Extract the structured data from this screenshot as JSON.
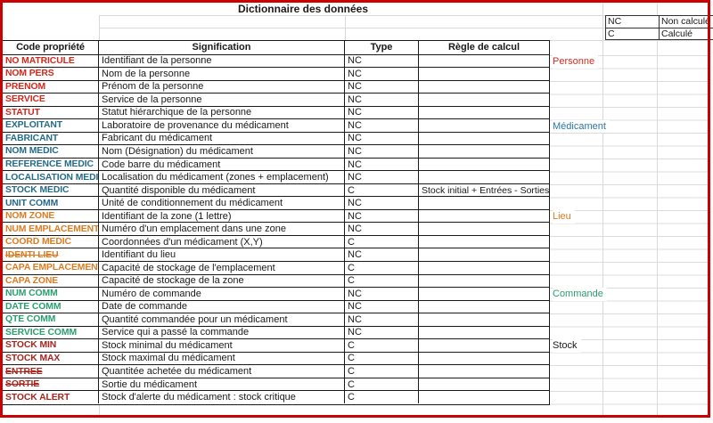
{
  "title": "Dictionnaire des données",
  "legend": {
    "items": [
      {
        "code": "NC",
        "label": "Non calculé"
      },
      {
        "code": "C",
        "label": "Calculé"
      }
    ]
  },
  "table": {
    "headers": [
      "Code propriété",
      "Signification",
      "Type",
      "Règle de calcul"
    ],
    "rows": [
      {
        "code": "NO MATRICULE",
        "signification": "Identifiant de la personne",
        "type": "NC",
        "regle": "",
        "group": "personne",
        "strike": false
      },
      {
        "code": "NOM PERS",
        "signification": "Nom de la personne",
        "type": "NC",
        "regle": "",
        "group": "personne",
        "strike": false
      },
      {
        "code": "PRENOM",
        "signification": "Prénom de la personne",
        "type": "NC",
        "regle": "",
        "group": "personne",
        "strike": false
      },
      {
        "code": "SERVICE",
        "signification": "Service de la personne",
        "type": "NC",
        "regle": "",
        "group": "personne",
        "strike": false
      },
      {
        "code": "STATUT",
        "signification": "Statut hiérarchique de la personne",
        "type": "NC",
        "regle": "",
        "group": "personne",
        "strike": false
      },
      {
        "code": "EXPLOITANT",
        "signification": "Laboratoire de provenance du médicament",
        "type": "NC",
        "regle": "",
        "group": "medicament",
        "strike": false
      },
      {
        "code": "FABRICANT",
        "signification": "Fabricant du médicament",
        "type": "NC",
        "regle": "",
        "group": "medicament",
        "strike": false
      },
      {
        "code": "NOM MEDIC",
        "signification": "Nom (Désignation) du médicament",
        "type": "NC",
        "regle": "",
        "group": "medicament",
        "strike": false
      },
      {
        "code": "REFERENCE MEDIC",
        "signification": "Code barre du médicament",
        "type": "NC",
        "regle": "",
        "group": "medicament",
        "strike": false
      },
      {
        "code": "LOCALISATION MEDIC",
        "signification": "Localisation du médicament (zones + emplacement)",
        "type": "NC",
        "regle": "",
        "group": "medicament",
        "strike": false
      },
      {
        "code": "STOCK MEDIC",
        "signification": "Quantité disponible du médicament",
        "type": "C",
        "regle": "Stock initial + Entrées - Sorties",
        "group": "medicament",
        "strike": false
      },
      {
        "code": "UNIT COMM",
        "signification": "Unité de conditionnement du médicament",
        "type": "NC",
        "regle": "",
        "group": "medicament",
        "strike": false
      },
      {
        "code": "NOM ZONE",
        "signification": "Identifiant de la zone (1 lettre)",
        "type": "NC",
        "regle": "",
        "group": "lieu",
        "strike": false
      },
      {
        "code": "NUM EMPLACEMENT",
        "signification": "Numéro d'un emplacement dans une zone",
        "type": "NC",
        "regle": "",
        "group": "lieu",
        "strike": false
      },
      {
        "code": "COORD MEDIC",
        "signification": "Coordonnées d'un médicament (X,Y)",
        "type": "C",
        "regle": "",
        "group": "lieu",
        "strike": false
      },
      {
        "code": "IDENTI LIEU",
        "signification": "Identifiant du lieu",
        "type": "NC",
        "regle": "",
        "group": "lieu",
        "strike": true
      },
      {
        "code": "CAPA EMPLACEMENT",
        "signification": "Capacité de stockage de l'emplacement",
        "type": "C",
        "regle": "",
        "group": "lieu",
        "strike": false
      },
      {
        "code": "CAPA ZONE",
        "signification": "Capacité de stockage de la zone",
        "type": "C",
        "regle": "",
        "group": "lieu",
        "strike": false
      },
      {
        "code": "NUM COMM",
        "signification": "Numéro de commande",
        "type": "NC",
        "regle": "",
        "group": "commande",
        "strike": false
      },
      {
        "code": "DATE COMM",
        "signification": "Date de commande",
        "type": "NC",
        "regle": "",
        "group": "commande",
        "strike": false
      },
      {
        "code": "QTE COMM",
        "signification": "Quantité commandée pour un médicament",
        "type": "NC",
        "regle": "",
        "group": "commande",
        "strike": false
      },
      {
        "code": "SERVICE COMM",
        "signification": "Service qui a passé la commande",
        "type": "NC",
        "regle": "",
        "group": "commande",
        "strike": false
      },
      {
        "code": "STOCK MIN",
        "signification": "Stock minimal du médicament",
        "type": "C",
        "regle": "",
        "group": "stock",
        "strike": false
      },
      {
        "code": "STOCK MAX",
        "signification": "Stock maximal du médicament",
        "type": "C",
        "regle": "",
        "group": "stock",
        "strike": false
      },
      {
        "code": "ENTREE",
        "signification": "Quantitée achetée du médicament",
        "type": "C",
        "regle": "",
        "group": "stock",
        "strike": true
      },
      {
        "code": "SORTIE",
        "signification": "Sortie du médicament",
        "type": "C",
        "regle": "",
        "group": "stock",
        "strike": true
      },
      {
        "code": "STOCK ALERT",
        "signification": "Stock d'alerte du médicament : stock critique",
        "type": "C",
        "regle": "",
        "group": "stock",
        "strike": false
      }
    ]
  },
  "categories": [
    {
      "label": "Personne",
      "row": 0,
      "color": "#d32f20"
    },
    {
      "label": "Médicament",
      "row": 5,
      "color": "#2978a8"
    },
    {
      "label": "Lieu",
      "row": 12,
      "color": "#de7b20"
    },
    {
      "label": "Commande",
      "row": 18,
      "color": "#2aa06f"
    },
    {
      "label": "Stock",
      "row": 22,
      "color": "#1a1a1a"
    }
  ],
  "colors": {
    "personne": "#d5281b",
    "medicament": "#246b8a",
    "lieu": "#de7b20",
    "commande": "#2aa06f",
    "stock": "#a8261d",
    "frame_red": "#cc0000",
    "grid_faint": "#d9d9d9",
    "border_dark": "#1a1a1a"
  }
}
